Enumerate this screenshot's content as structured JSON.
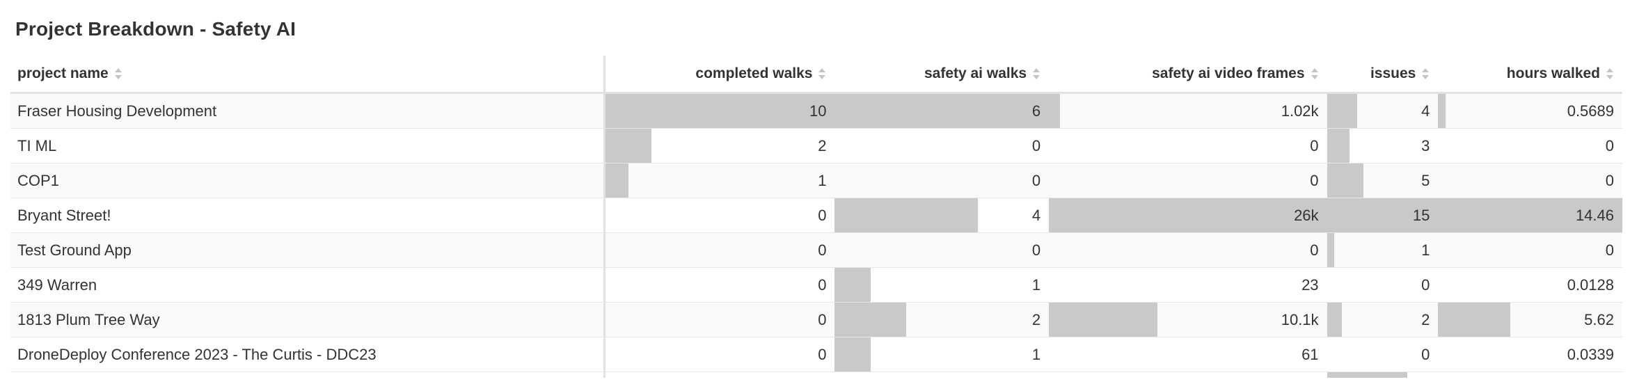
{
  "title": "Project Breakdown - Safety AI",
  "columns": {
    "project_name": "project name",
    "completed_walks": "completed walks",
    "safety_ai_walks": "safety ai walks",
    "safety_ai_video_frames": "safety ai video frames",
    "issues": "issues",
    "hours_walked": "hours walked"
  },
  "bar_color": "#c9c9c9",
  "rows": [
    {
      "name": "Fraser Housing Development",
      "completed_walks": "10",
      "safety_ai_walks": "6",
      "frames": "1.02k",
      "issues": "4",
      "hours": "0.5689"
    },
    {
      "name": "TI ML",
      "completed_walks": "2",
      "safety_ai_walks": "0",
      "frames": "0",
      "issues": "3",
      "hours": "0"
    },
    {
      "name": "COP1",
      "completed_walks": "1",
      "safety_ai_walks": "0",
      "frames": "0",
      "issues": "5",
      "hours": "0"
    },
    {
      "name": "Bryant Street!",
      "completed_walks": "0",
      "safety_ai_walks": "4",
      "frames": "26k",
      "issues": "15",
      "hours": "14.46"
    },
    {
      "name": "Test Ground App",
      "completed_walks": "0",
      "safety_ai_walks": "0",
      "frames": "0",
      "issues": "1",
      "hours": "0"
    },
    {
      "name": "349 Warren",
      "completed_walks": "0",
      "safety_ai_walks": "1",
      "frames": "23",
      "issues": "0",
      "hours": "0.0128"
    },
    {
      "name": "1813 Plum Tree Way",
      "completed_walks": "0",
      "safety_ai_walks": "2",
      "frames": "10.1k",
      "issues": "2",
      "hours": "5.62"
    },
    {
      "name": "DroneDeploy Conference 2023 - The Curtis - DDC23",
      "completed_walks": "0",
      "safety_ai_walks": "1",
      "frames": "61",
      "issues": "0",
      "hours": "0.0339"
    }
  ]
}
